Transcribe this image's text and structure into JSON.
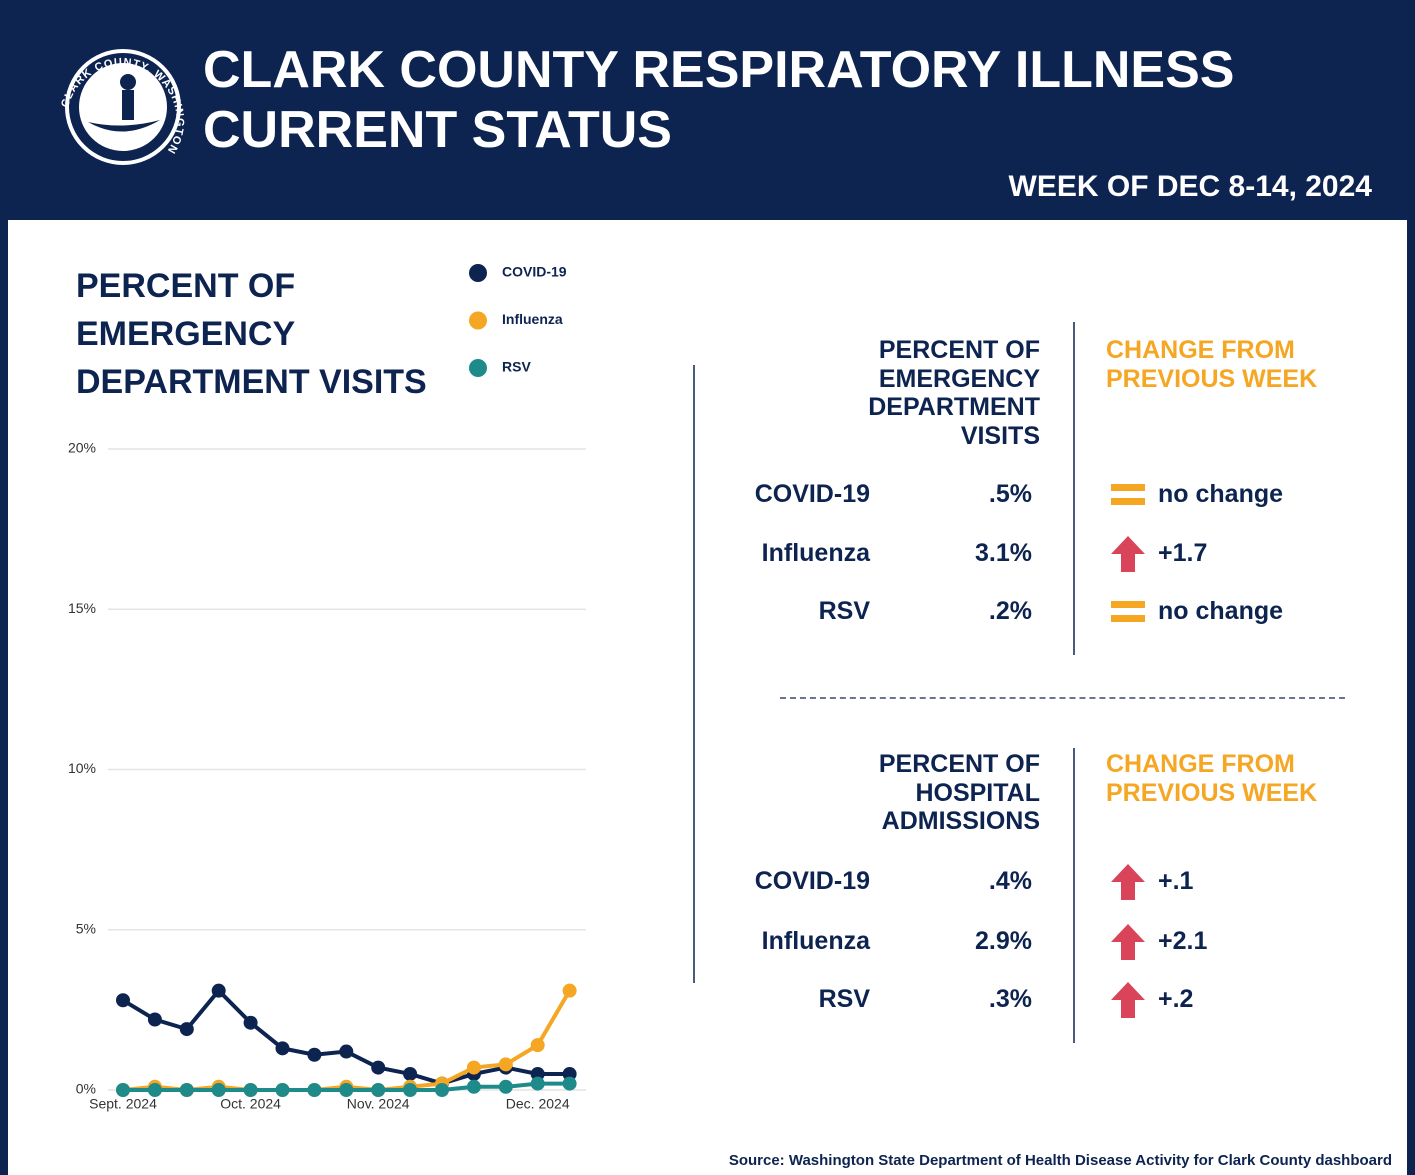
{
  "header": {
    "logo_text": "CLARK COUNTY, WASHINGTON",
    "title_lines": [
      "CLARK COUNTY RESPIRATORY ILLNESS",
      "CURRENT STATUS"
    ],
    "week": "WEEK OF DEC 8-14, 2024"
  },
  "chart_data": {
    "type": "line",
    "title": "PERCENT OF EMERGENCY DEPARTMENT VISITS",
    "categories": [
      "Sept. 2024",
      null,
      null,
      null,
      "Oct. 2024",
      null,
      null,
      null,
      "Nov. 2024",
      null,
      null,
      null,
      null,
      "Dec. 2024",
      null
    ],
    "series": [
      {
        "name": "COVID-19",
        "color": "#0d2350",
        "values": [
          2.8,
          2.2,
          1.9,
          3.1,
          2.1,
          1.3,
          1.1,
          1.2,
          0.7,
          0.5,
          0.2,
          0.5,
          0.7,
          0.5,
          0.5
        ]
      },
      {
        "name": "Influenza",
        "color": "#f5a623",
        "values": [
          0,
          0.1,
          0,
          0.1,
          0,
          0,
          0,
          0.1,
          0,
          0.1,
          0.2,
          0.7,
          0.8,
          1.4,
          3.1
        ]
      },
      {
        "name": "RSV",
        "color": "#1f8a8a",
        "values": [
          0,
          0,
          0,
          0,
          0,
          0,
          0,
          0,
          0,
          0,
          0,
          0.1,
          0.1,
          0.2,
          0.2
        ]
      }
    ],
    "ylim": [
      0,
      20
    ],
    "yticks": [
      {
        "value": 0,
        "label": "0%"
      },
      {
        "value": 5,
        "label": "5%"
      },
      {
        "value": 10,
        "label": "10%"
      },
      {
        "value": 15,
        "label": "15%"
      },
      {
        "value": 20,
        "label": "20%"
      }
    ],
    "grid": true
  },
  "tables": [
    {
      "headers": [
        "PERCENT OF EMERGENCY DEPARTMENT VISITS",
        "CHANGE FROM PREVIOUS WEEK"
      ],
      "rows": [
        [
          "COVID-19",
          ".5%",
          "no change"
        ],
        [
          "Influenza",
          "3.1%",
          "+1.7"
        ],
        [
          "RSV",
          ".2%",
          "no change"
        ]
      ]
    },
    {
      "headers": [
        "PERCENT OF HOSPITAL ADMISSIONS",
        "CHANGE FROM PREVIOUS WEEK"
      ],
      "rows": [
        [
          "COVID-19",
          ".4%",
          "+.1"
        ],
        [
          "Influenza",
          "2.9%",
          "+2.1"
        ],
        [
          "RSV",
          ".3%",
          "+.2"
        ]
      ]
    }
  ],
  "source": "Source: Washington State Department of Health Disease Activity for Clark County dashboard"
}
